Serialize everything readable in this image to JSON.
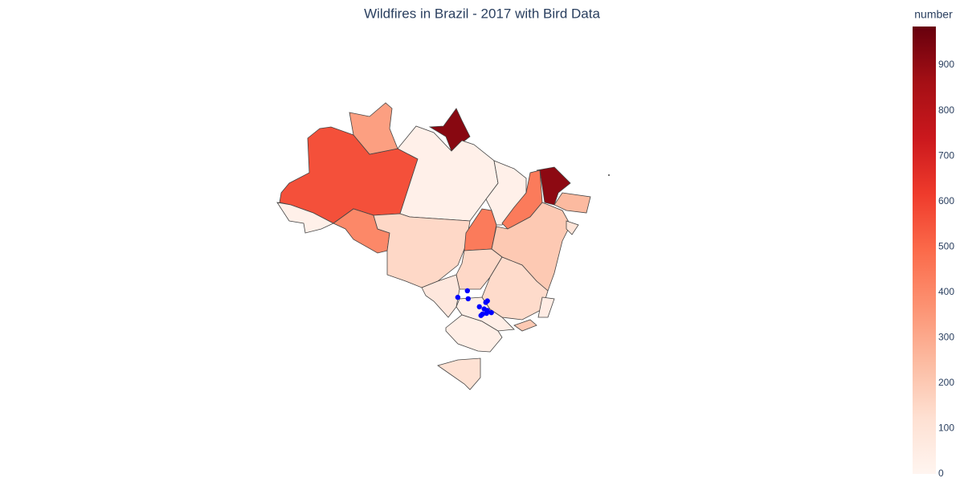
{
  "chart_data": {
    "type": "choropleth",
    "title": "Wildfires in Brazil - 2017 with Bird Data",
    "colorbar_title": "number",
    "colorscale": "Reds",
    "values": [
      560,
      30,
      330,
      920,
      30,
      400,
      150,
      440,
      30,
      440,
      910,
      250,
      200,
      150,
      80,
      140,
      40,
      40,
      200,
      50,
      120,
      100
    ],
    "zlim": [
      0,
      985
    ],
    "zticks": [
      0,
      100,
      200,
      300,
      400,
      500,
      600,
      700,
      800,
      900
    ],
    "points": {
      "color": "#0000ff",
      "lon": [
        -50.2,
        -51.4,
        -50.1,
        -47.7,
        -47.9,
        -48.7,
        -48.1,
        -47.7,
        -47.2,
        -48.3,
        -47.8,
        -48.5
      ],
      "lat": [
        -20.1,
        -21.0,
        -21.2,
        -21.5,
        -21.7,
        -22.3,
        -22.6,
        -22.8,
        -23.1,
        -23.3,
        -23.2,
        -23.5
      ]
    }
  }
}
